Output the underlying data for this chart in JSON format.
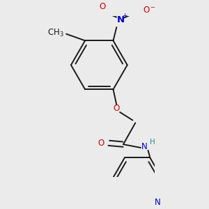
{
  "background_color": "#ebebeb",
  "bond_color": "#1a1a1a",
  "bond_width": 1.4,
  "atom_colors": {
    "N": "#0000cc",
    "O": "#cc0000",
    "H": "#2e8b8b"
  },
  "font_size": 8.5
}
